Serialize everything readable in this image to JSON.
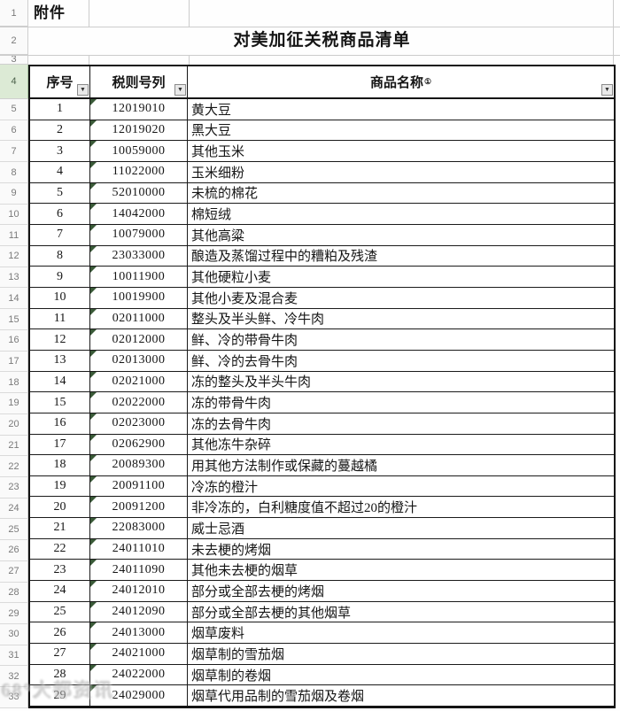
{
  "sheet": {
    "attachment_label": "附件",
    "title": "对美加征关税商品清单",
    "top_row_headers": {
      "r1": "1",
      "r2": "2",
      "r3": "3",
      "r4": "4"
    },
    "columns": [
      {
        "label": "序号"
      },
      {
        "label": "税则号列"
      },
      {
        "label": "商品名称",
        "superscript": "①"
      }
    ],
    "rows": [
      {
        "gutter": "5",
        "no": "1",
        "code": "12019010",
        "name": "黄大豆"
      },
      {
        "gutter": "6",
        "no": "2",
        "code": "12019020",
        "name": "黑大豆"
      },
      {
        "gutter": "7",
        "no": "3",
        "code": "10059000",
        "name": "其他玉米"
      },
      {
        "gutter": "8",
        "no": "4",
        "code": "11022000",
        "name": "玉米细粉"
      },
      {
        "gutter": "9",
        "no": "5",
        "code": "52010000",
        "name": "未梳的棉花"
      },
      {
        "gutter": "10",
        "no": "6",
        "code": "14042000",
        "name": "棉短绒"
      },
      {
        "gutter": "11",
        "no": "7",
        "code": "10079000",
        "name": "其他高粱"
      },
      {
        "gutter": "12",
        "no": "8",
        "code": "23033000",
        "name": "酿造及蒸馏过程中的糟粕及残渣"
      },
      {
        "gutter": "13",
        "no": "9",
        "code": "10011900",
        "name": "其他硬粒小麦"
      },
      {
        "gutter": "14",
        "no": "10",
        "code": "10019900",
        "name": "其他小麦及混合麦"
      },
      {
        "gutter": "15",
        "no": "11",
        "code": "02011000",
        "name": "整头及半头鲜、冷牛肉"
      },
      {
        "gutter": "16",
        "no": "12",
        "code": "02012000",
        "name": "鲜、冷的带骨牛肉"
      },
      {
        "gutter": "17",
        "no": "13",
        "code": "02013000",
        "name": "鲜、冷的去骨牛肉"
      },
      {
        "gutter": "18",
        "no": "14",
        "code": "02021000",
        "name": "冻的整头及半头牛肉"
      },
      {
        "gutter": "19",
        "no": "15",
        "code": "02022000",
        "name": "冻的带骨牛肉"
      },
      {
        "gutter": "20",
        "no": "16",
        "code": "02023000",
        "name": "冻的去骨牛肉"
      },
      {
        "gutter": "21",
        "no": "17",
        "code": "02062900",
        "name": "其他冻牛杂碎"
      },
      {
        "gutter": "22",
        "no": "18",
        "code": "20089300",
        "name": "用其他方法制作或保藏的蔓越橘"
      },
      {
        "gutter": "23",
        "no": "19",
        "code": "20091100",
        "name": "冷冻的橙汁"
      },
      {
        "gutter": "24",
        "no": "20",
        "code": "20091200",
        "name": "非冷冻的，白利糖度值不超过20的橙汁"
      },
      {
        "gutter": "25",
        "no": "21",
        "code": "22083000",
        "name": "威士忌酒"
      },
      {
        "gutter": "26",
        "no": "22",
        "code": "24011010",
        "name": "未去梗的烤烟"
      },
      {
        "gutter": "27",
        "no": "23",
        "code": "24011090",
        "name": "其他未去梗的烟草"
      },
      {
        "gutter": "28",
        "no": "24",
        "code": "24012010",
        "name": "部分或全部去梗的烤烟"
      },
      {
        "gutter": "29",
        "no": "25",
        "code": "24012090",
        "name": "部分或全部去梗的其他烟草"
      },
      {
        "gutter": "30",
        "no": "26",
        "code": "24013000",
        "name": "烟草废料"
      },
      {
        "gutter": "31",
        "no": "27",
        "code": "24021000",
        "name": "烟草制的雪茄烟"
      },
      {
        "gutter": "32",
        "no": "28",
        "code": "24022000",
        "name": "烟草制的卷烟"
      },
      {
        "gutter": "33",
        "no": "29",
        "code": "24029000",
        "name": "烟草代用品制的雪茄烟及卷烟"
      }
    ]
  },
  "icons": {
    "filter_dropdown": "▼"
  },
  "colors": {
    "table_border": "#141414",
    "gridline": "#cccccc",
    "gutter_text": "#7a7a7a",
    "selected_row_header_bg": "#dcead5",
    "flag_triangle": "#3a5a38"
  },
  "watermark": {
    "text": "68°大都资讯"
  }
}
